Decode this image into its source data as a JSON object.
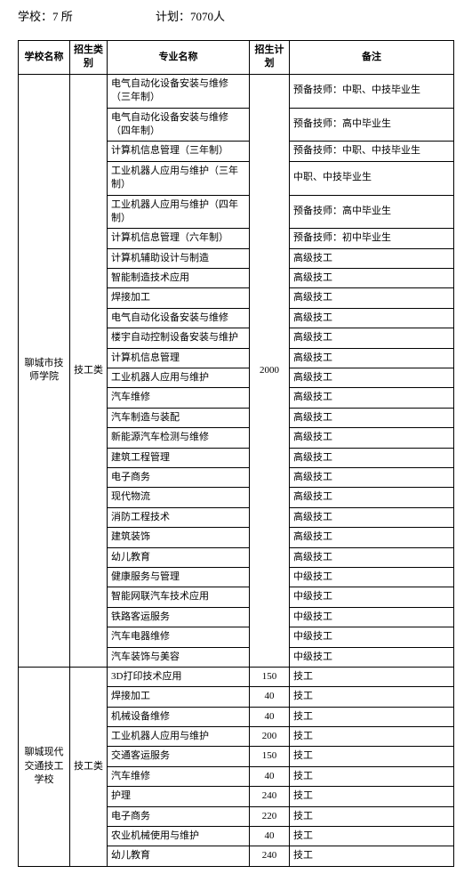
{
  "header": {
    "school_label": "学校：",
    "school_count": "7 所",
    "plan_label": "计划：",
    "plan_count": "7070人"
  },
  "columns": {
    "school": "学校名称",
    "type": "招生类别",
    "major": "专业名称",
    "plan": "招生计划",
    "note": "备注"
  },
  "schools": [
    {
      "name": "聊城市技师学院",
      "type": "技工类",
      "plan": "2000",
      "rows": [
        {
          "major": "电气自动化设备安装与维修（三年制）",
          "note": "预备技师：中职、中技毕业生"
        },
        {
          "major": "电气自动化设备安装与维修（四年制）",
          "note": "预备技师：高中毕业生"
        },
        {
          "major": "计算机信息管理（三年制）",
          "note": "预备技师：中职、中技毕业生"
        },
        {
          "major": "工业机器人应用与维护（三年制）",
          "note": "中职、中技毕业生"
        },
        {
          "major": "工业机器人应用与维护（四年制）",
          "note": "预备技师：高中毕业生"
        },
        {
          "major": "计算机信息管理（六年制）",
          "note": "预备技师：初中毕业生"
        },
        {
          "major": "计算机辅助设计与制造",
          "note": "高级技工"
        },
        {
          "major": "智能制造技术应用",
          "note": "高级技工"
        },
        {
          "major": "焊接加工",
          "note": "高级技工"
        },
        {
          "major": "电气自动化设备安装与维修",
          "note": "高级技工"
        },
        {
          "major": "楼宇自动控制设备安装与维护",
          "note": "高级技工"
        },
        {
          "major": "计算机信息管理",
          "note": "高级技工"
        },
        {
          "major": "工业机器人应用与维护",
          "note": "高级技工"
        },
        {
          "major": "汽车维修",
          "note": "高级技工"
        },
        {
          "major": "汽车制造与装配",
          "note": "高级技工"
        },
        {
          "major": "新能源汽车检测与维修",
          "note": "高级技工"
        },
        {
          "major": "建筑工程管理",
          "note": "高级技工"
        },
        {
          "major": "电子商务",
          "note": "高级技工"
        },
        {
          "major": "现代物流",
          "note": "高级技工"
        },
        {
          "major": "消防工程技术",
          "note": "高级技工"
        },
        {
          "major": "建筑装饰",
          "note": "高级技工"
        },
        {
          "major": "幼儿教育",
          "note": "高级技工"
        },
        {
          "major": "健康服务与管理",
          "note": "中级技工"
        },
        {
          "major": "智能网联汽车技术应用",
          "note": "中级技工"
        },
        {
          "major": "铁路客运服务",
          "note": "中级技工"
        },
        {
          "major": "汽车电器维修",
          "note": "中级技工"
        },
        {
          "major": "汽车装饰与美容",
          "note": "中级技工"
        }
      ]
    },
    {
      "name": "聊城现代交通技工学校",
      "type": "技工类",
      "rows": [
        {
          "major": "3D打印技术应用",
          "plan": "150",
          "note": "技工"
        },
        {
          "major": "焊接加工",
          "plan": "40",
          "note": "技工"
        },
        {
          "major": "机械设备维修",
          "plan": "40",
          "note": "技工"
        },
        {
          "major": "工业机器人应用与维护",
          "plan": "200",
          "note": "技工"
        },
        {
          "major": "交通客运服务",
          "plan": "150",
          "note": "技工"
        },
        {
          "major": "汽车维修",
          "plan": "40",
          "note": "技工"
        },
        {
          "major": "护理",
          "plan": "240",
          "note": "技工"
        },
        {
          "major": "电子商务",
          "plan": "220",
          "note": "技工"
        },
        {
          "major": "农业机械使用与维护",
          "plan": "40",
          "note": "技工"
        },
        {
          "major": "幼儿教育",
          "plan": "240",
          "note": "技工"
        }
      ]
    }
  ]
}
